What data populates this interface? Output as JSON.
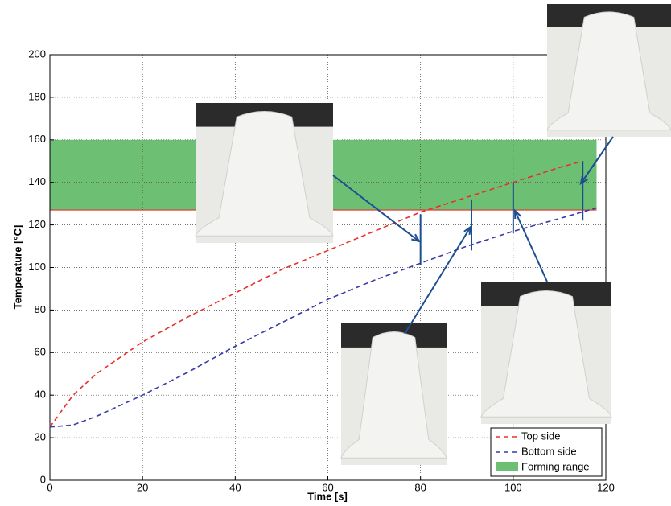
{
  "chart_data": {
    "type": "line",
    "xlabel": "Time [s]",
    "ylabel": "Temperature [°C]",
    "xlim": [
      0,
      120
    ],
    "ylim": [
      0,
      200
    ],
    "xticks": [
      0,
      20,
      40,
      60,
      80,
      100,
      120
    ],
    "yticks": [
      0,
      20,
      40,
      60,
      80,
      100,
      120,
      140,
      160,
      180,
      200
    ],
    "grid": true,
    "legend": "lower right",
    "series": [
      {
        "name": "Top side",
        "color": "#e8302a",
        "x": [
          0,
          5,
          10,
          20,
          30,
          40,
          50,
          60,
          70,
          80,
          90,
          100,
          110,
          115
        ],
        "values": [
          25,
          40,
          50,
          65,
          77,
          88,
          99,
          108,
          117,
          126,
          133,
          140,
          147,
          150
        ]
      },
      {
        "name": "Bottom side",
        "color": "#3a3aa8",
        "x": [
          0,
          5,
          10,
          20,
          30,
          40,
          50,
          60,
          70,
          80,
          90,
          100,
          110,
          118
        ],
        "values": [
          25,
          26,
          30,
          40,
          51,
          63,
          74,
          85,
          94,
          102,
          110,
          117,
          123,
          128
        ]
      }
    ],
    "band": {
      "name": "Forming range",
      "color": "#6dbf73",
      "edge": "#e8302a",
      "low": 127,
      "high": 160,
      "xmax": 118
    },
    "markers": [
      {
        "x": 80,
        "low": 101,
        "high": 125
      },
      {
        "x": 91,
        "low": 108,
        "high": 132
      },
      {
        "x": 100,
        "low": 116,
        "high": 140
      },
      {
        "x": 115,
        "low": 122,
        "high": 150
      }
    ]
  }
}
